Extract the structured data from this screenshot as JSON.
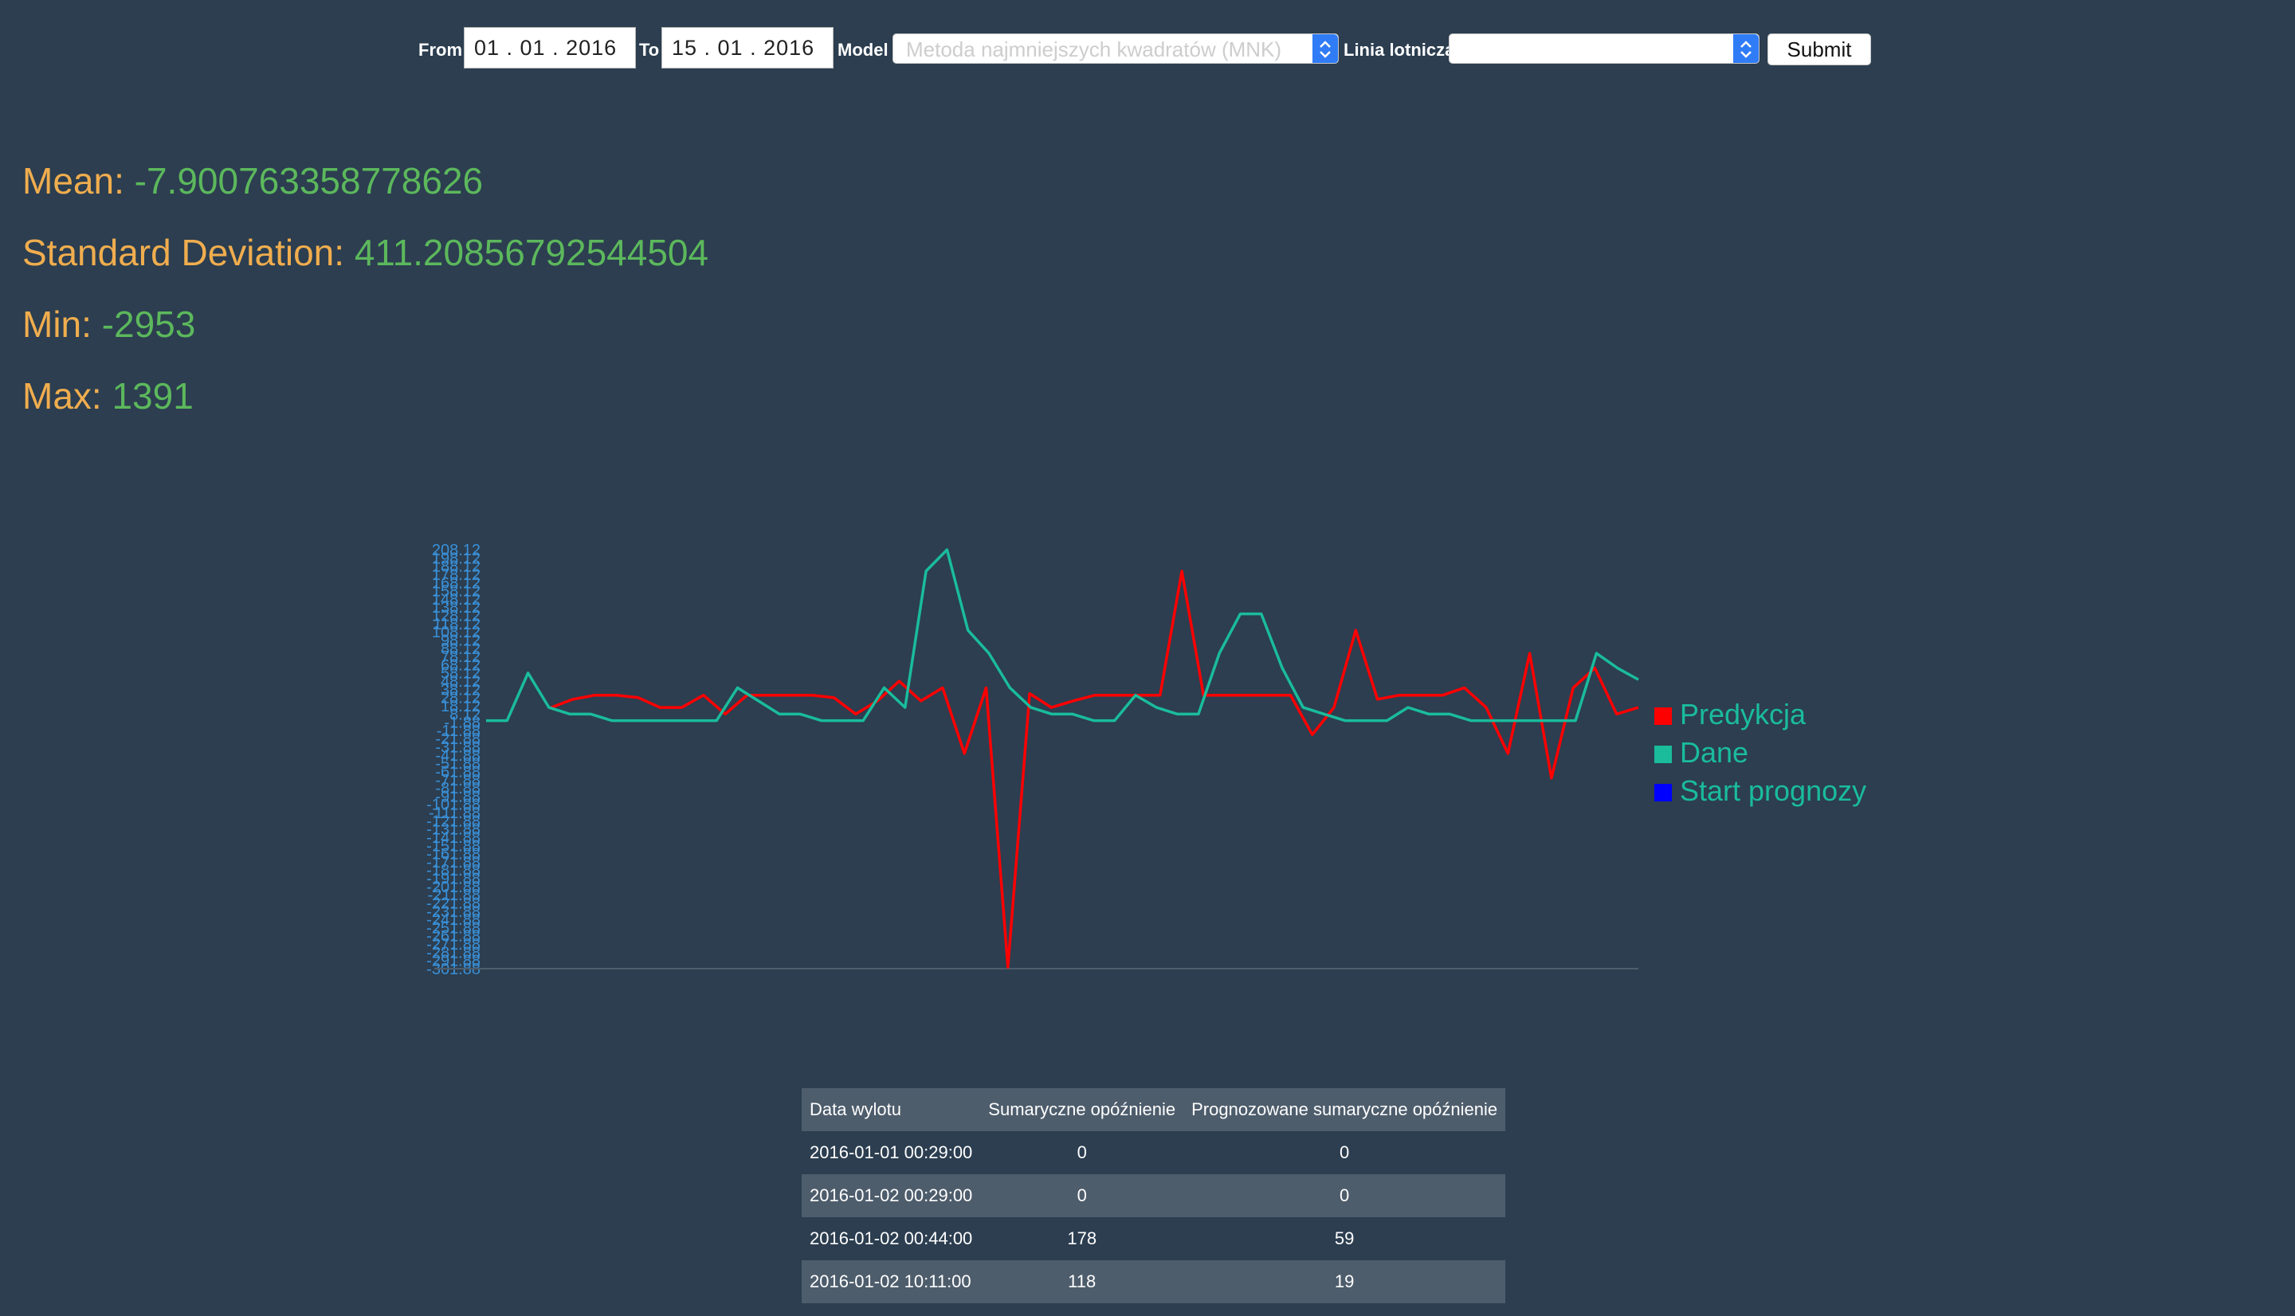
{
  "form": {
    "from_label": "From",
    "from_value": "01 . 01 . 2016",
    "to_label": "To",
    "to_value": "15 . 01 . 2016",
    "model_label": "Model",
    "model_value": "Metoda najmniejszych kwadratów (MNK)",
    "airline_label": "Linia lotnicza",
    "airline_value": "",
    "submit_label": "Submit"
  },
  "stats": {
    "mean_label": "Mean:",
    "mean_value": "-7.900763358778626",
    "std_label": "Standard Deviation:",
    "std_value": "411.20856792544504",
    "min_label": "Min:",
    "min_value": "-2953",
    "max_label": "Max:",
    "max_value": "1391"
  },
  "chart_data": {
    "type": "line",
    "title": "",
    "xlabel": "",
    "ylabel": "",
    "ylim": [
      -301.88,
      208.12
    ],
    "y_ticks": [
      "208.12",
      "198.12",
      "188.12",
      "178.12",
      "168.12",
      "158.12",
      "148.12",
      "138.12",
      "128.12",
      "118.12",
      "108.12",
      "98.12",
      "88.12",
      "78.12",
      "68.12",
      "58.12",
      "48.12",
      "38.12",
      "28.12",
      "18.12",
      "8.12",
      "-1.88",
      "-11.88",
      "-21.88",
      "-31.88",
      "-41.88",
      "-51.88",
      "-61.88",
      "-71.88",
      "-81.88",
      "-91.88",
      "-101.88",
      "-111.88",
      "-121.88",
      "-131.88",
      "-141.88",
      "-151.88",
      "-161.88",
      "-171.88",
      "-181.88",
      "-191.88",
      "-201.88",
      "-211.88",
      "-221.88",
      "-231.88",
      "-241.88",
      "-251.88",
      "-261.88",
      "-271.88",
      "-281.88",
      "-291.88",
      "-301.88"
    ],
    "grid": false,
    "legend_position": "right",
    "series": [
      {
        "name": "Predykcja",
        "color": "#ff0000",
        "values": [
          null,
          null,
          null,
          16,
          26,
          31,
          31,
          28,
          16,
          16,
          31,
          8,
          31,
          31,
          31,
          31,
          28,
          8,
          24,
          48,
          24,
          40,
          -40,
          40,
          -300,
          33,
          16,
          24,
          31,
          31,
          31,
          31,
          182,
          31,
          31,
          31,
          31,
          31,
          -17,
          16,
          110,
          26,
          31,
          31,
          31,
          40,
          16,
          -40,
          82,
          -70,
          40,
          64,
          8,
          16
        ]
      },
      {
        "name": "Dane",
        "color": "#1abc9c",
        "values": [
          0,
          0,
          58,
          16,
          8,
          8,
          0,
          0,
          0,
          0,
          0,
          0,
          40,
          24,
          8,
          8,
          0,
          0,
          0,
          40,
          16,
          182,
          208,
          110,
          82,
          40,
          16,
          8,
          8,
          0,
          0,
          31,
          16,
          8,
          8,
          82,
          130,
          130,
          64,
          16,
          8,
          0,
          0,
          0,
          16,
          8,
          8,
          0,
          0,
          0,
          0,
          0,
          0,
          82,
          64,
          50
        ]
      },
      {
        "name": "Start prognozy",
        "color": "#0000ff",
        "values": []
      }
    ]
  },
  "table": {
    "headers": [
      "Data wylotu",
      "Sumaryczne opóźnienie",
      "Prognozowane sumaryczne opóźnienie"
    ],
    "rows": [
      [
        "2016-01-01 00:29:00",
        "0",
        "0"
      ],
      [
        "2016-01-02 00:29:00",
        "0",
        "0"
      ],
      [
        "2016-01-02 00:44:00",
        "178",
        "59"
      ],
      [
        "2016-01-02 10:11:00",
        "118",
        "19"
      ]
    ]
  }
}
